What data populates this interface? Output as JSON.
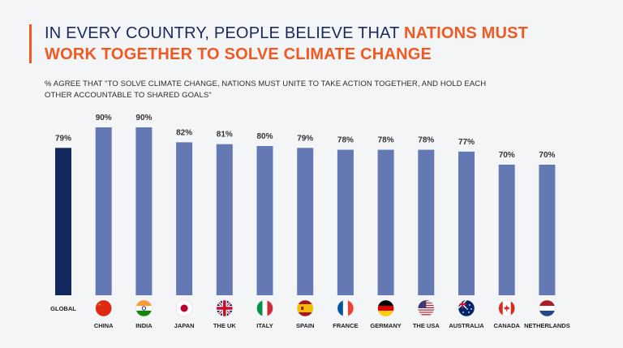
{
  "header": {
    "title_part1": "IN EVERY COUNTRY, PEOPLE BELIEVE THAT ",
    "title_highlight": "NATIONS MUST WORK TOGETHER TO SOLVE CLIMATE CHANGE",
    "subtitle": "% AGREE THAT \"TO SOLVE CLIMATE CHANGE, NATIONS MUST UNITE TO TAKE ACTION TOGETHER, AND HOLD EACH OTHER ACCOUNTABLE TO SHARED GOALS\""
  },
  "colors": {
    "accent": "#f05a22",
    "title": "#1a2a5e",
    "global_bar": "#14285e",
    "country_bar": "#6479b3"
  },
  "chart_data": {
    "type": "bar",
    "categories": [
      "GLOBAL",
      "CHINA",
      "INDIA",
      "JAPAN",
      "THE UK",
      "ITALY",
      "SPAIN",
      "FRANCE",
      "GERMANY",
      "THE USA",
      "AUSTRALIA",
      "CANADA",
      "NETHERLANDS"
    ],
    "values": [
      79,
      90,
      90,
      82,
      81,
      80,
      79,
      78,
      78,
      78,
      77,
      70,
      70
    ],
    "value_labels": [
      "79%",
      "90%",
      "90%",
      "82%",
      "81%",
      "80%",
      "79%",
      "78%",
      "78%",
      "78%",
      "77%",
      "70%",
      "70%"
    ],
    "flags": [
      "",
      "china-flag-icon",
      "india-flag-icon",
      "japan-flag-icon",
      "uk-flag-icon",
      "italy-flag-icon",
      "spain-flag-icon",
      "france-flag-icon",
      "germany-flag-icon",
      "usa-flag-icon",
      "australia-flag-icon",
      "canada-flag-icon",
      "netherlands-flag-icon"
    ],
    "ylim": [
      0,
      100
    ],
    "grid": false,
    "legend": "none"
  }
}
